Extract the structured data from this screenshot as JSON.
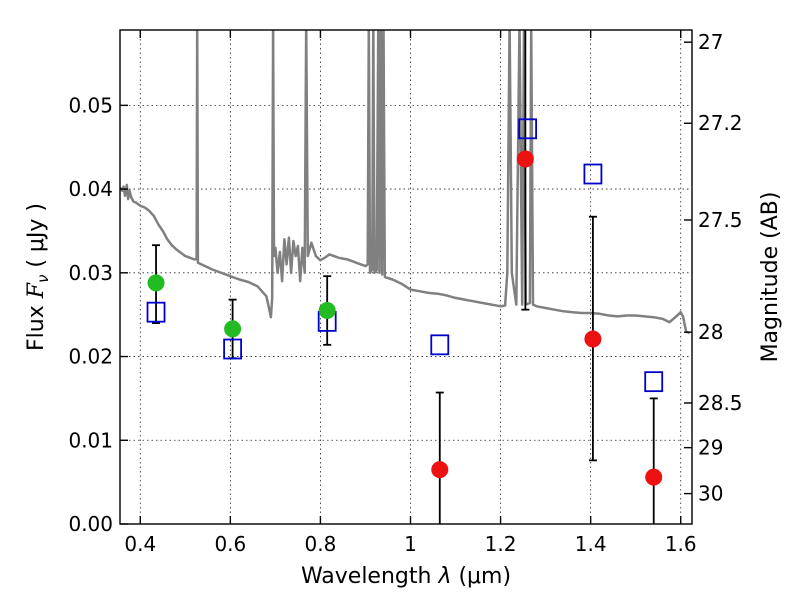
{
  "chart_data": {
    "type": "scatter",
    "title": "",
    "xlabel_pre": "Wavelength  ",
    "xlabel_lambda": "λ",
    "xlabel_units": " (μm)",
    "ylabel_pre": "Flux  ",
    "ylabel_F": "F",
    "ylabel_nu": "ν",
    "ylabel_units": "  ( μJy )",
    "y2label": "Magnitude (AB)",
    "xlim": [
      0.355,
      1.625
    ],
    "ylim": [
      0.0,
      0.059
    ],
    "grid": true,
    "x_ticks": [
      {
        "value": 0.4,
        "label": "0.4"
      },
      {
        "value": 0.6,
        "label": "0.6"
      },
      {
        "value": 0.8,
        "label": "0.8"
      },
      {
        "value": 1.0,
        "label": "1"
      },
      {
        "value": 1.2,
        "label": "1.2"
      },
      {
        "value": 1.4,
        "label": "1.4"
      },
      {
        "value": 1.6,
        "label": "1.6"
      }
    ],
    "y_ticks": [
      {
        "value": 0.0,
        "label": "0.00"
      },
      {
        "value": 0.01,
        "label": "0.01"
      },
      {
        "value": 0.02,
        "label": "0.02"
      },
      {
        "value": 0.03,
        "label": "0.03"
      },
      {
        "value": 0.04,
        "label": "0.04"
      },
      {
        "value": 0.05,
        "label": "0.05"
      }
    ],
    "mag_ticks": [
      {
        "mag": 27,
        "label": "27"
      },
      {
        "mag": 27.2,
        "label": "27.2"
      },
      {
        "mag": 27.5,
        "label": "27.5"
      },
      {
        "mag": 28,
        "label": "28"
      },
      {
        "mag": 28.5,
        "label": "28.5"
      },
      {
        "mag": 29,
        "label": "29"
      },
      {
        "mag": 30,
        "label": "30"
      }
    ],
    "template_spectrum": {
      "color": "#808080",
      "points": [
        [
          0.355,
          0.0402
        ],
        [
          0.36,
          0.0398
        ],
        [
          0.363,
          0.0403
        ],
        [
          0.366,
          0.0392
        ],
        [
          0.37,
          0.0405
        ],
        [
          0.373,
          0.0388
        ],
        [
          0.376,
          0.0398
        ],
        [
          0.38,
          0.039
        ],
        [
          0.385,
          0.0385
        ],
        [
          0.39,
          0.0384
        ],
        [
          0.4,
          0.038
        ],
        [
          0.41,
          0.0378
        ],
        [
          0.42,
          0.0374
        ],
        [
          0.43,
          0.0368
        ],
        [
          0.44,
          0.0358
        ],
        [
          0.45,
          0.035
        ],
        [
          0.46,
          0.034
        ],
        [
          0.47,
          0.0333
        ],
        [
          0.48,
          0.0328
        ],
        [
          0.49,
          0.0324
        ],
        [
          0.5,
          0.032
        ],
        [
          0.51,
          0.0318
        ],
        [
          0.52,
          0.0316
        ],
        [
          0.525,
          0.0316
        ],
        [
          0.5265,
          0.06
        ],
        [
          0.528,
          0.0312
        ],
        [
          0.54,
          0.0309
        ],
        [
          0.56,
          0.0304
        ],
        [
          0.58,
          0.03
        ],
        [
          0.6,
          0.0296
        ],
        [
          0.62,
          0.0292
        ],
        [
          0.64,
          0.0289
        ],
        [
          0.66,
          0.0284
        ],
        [
          0.68,
          0.0272
        ],
        [
          0.685,
          0.026
        ],
        [
          0.69,
          0.0247
        ],
        [
          0.693,
          0.027
        ],
        [
          0.695,
          0.06
        ],
        [
          0.697,
          0.032
        ],
        [
          0.7,
          0.033
        ],
        [
          0.705,
          0.03
        ],
        [
          0.71,
          0.0325
        ],
        [
          0.715,
          0.029
        ],
        [
          0.72,
          0.034
        ],
        [
          0.725,
          0.031
        ],
        [
          0.73,
          0.0342
        ],
        [
          0.735,
          0.03
        ],
        [
          0.74,
          0.0338
        ],
        [
          0.745,
          0.032
        ],
        [
          0.75,
          0.0332
        ],
        [
          0.755,
          0.029
        ],
        [
          0.76,
          0.033
        ],
        [
          0.765,
          0.03
        ],
        [
          0.7685,
          0.06
        ],
        [
          0.772,
          0.032
        ],
        [
          0.78,
          0.0336
        ],
        [
          0.79,
          0.032
        ],
        [
          0.8,
          0.0315
        ],
        [
          0.81,
          0.0318
        ],
        [
          0.82,
          0.0322
        ],
        [
          0.83,
          0.032
        ],
        [
          0.84,
          0.0318
        ],
        [
          0.85,
          0.0317
        ],
        [
          0.86,
          0.0316
        ],
        [
          0.87,
          0.0314
        ],
        [
          0.88,
          0.0312
        ],
        [
          0.89,
          0.031
        ],
        [
          0.9,
          0.0308
        ],
        [
          0.905,
          0.031
        ],
        [
          0.9075,
          0.06
        ],
        [
          0.91,
          0.03
        ],
        [
          0.915,
          0.0304
        ],
        [
          0.9175,
          0.06
        ],
        [
          0.92,
          0.03
        ],
        [
          0.925,
          0.0303
        ],
        [
          0.9285,
          0.06
        ],
        [
          0.931,
          0.03
        ],
        [
          0.934,
          0.06
        ],
        [
          0.937,
          0.0298
        ],
        [
          0.94,
          0.06
        ],
        [
          0.943,
          0.0295
        ],
        [
          0.96,
          0.0292
        ],
        [
          0.98,
          0.0287
        ],
        [
          1.0,
          0.028
        ],
        [
          1.02,
          0.0278
        ],
        [
          1.04,
          0.0276
        ],
        [
          1.06,
          0.0275
        ],
        [
          1.08,
          0.0273
        ],
        [
          1.1,
          0.027
        ],
        [
          1.12,
          0.0268
        ],
        [
          1.14,
          0.0266
        ],
        [
          1.16,
          0.0264
        ],
        [
          1.18,
          0.0262
        ],
        [
          1.2,
          0.026
        ],
        [
          1.21,
          0.0261
        ],
        [
          1.215,
          0.03
        ],
        [
          1.22,
          0.06
        ],
        [
          1.225,
          0.03
        ],
        [
          1.235,
          0.0262
        ],
        [
          1.242,
          0.06
        ],
        [
          1.248,
          0.0262
        ],
        [
          1.252,
          0.06
        ],
        [
          1.256,
          0.0262
        ],
        [
          1.26,
          0.0263
        ],
        [
          1.265,
          0.0264
        ],
        [
          1.268,
          0.06
        ],
        [
          1.272,
          0.0262
        ],
        [
          1.28,
          0.026
        ],
        [
          1.3,
          0.0258
        ],
        [
          1.32,
          0.0256
        ],
        [
          1.34,
          0.0254
        ],
        [
          1.36,
          0.0253
        ],
        [
          1.38,
          0.0252
        ],
        [
          1.4,
          0.0252
        ],
        [
          1.42,
          0.0251
        ],
        [
          1.44,
          0.0249
        ],
        [
          1.46,
          0.0248
        ],
        [
          1.48,
          0.0249
        ],
        [
          1.5,
          0.0249
        ],
        [
          1.52,
          0.0248
        ],
        [
          1.54,
          0.0247
        ],
        [
          1.56,
          0.0245
        ],
        [
          1.575,
          0.0241
        ],
        [
          1.59,
          0.0248
        ],
        [
          1.6,
          0.0253
        ],
        [
          1.605,
          0.0248
        ],
        [
          1.612,
          0.023
        ],
        [
          1.62,
          0.0228
        ]
      ]
    },
    "model_points": {
      "color": "#0000cc",
      "x": [
        0.435,
        0.605,
        0.815,
        1.065,
        1.26,
        1.405,
        1.54
      ],
      "y": [
        0.0253,
        0.0209,
        0.0242,
        0.0214,
        0.0472,
        0.0418,
        0.017
      ]
    },
    "observed_green": {
      "color": "#22bb22",
      "x": [
        0.435,
        0.605,
        0.815
      ],
      "y": [
        0.0288,
        0.0233,
        0.0255
      ],
      "err_low": [
        0.024,
        0.0198,
        0.0214
      ],
      "err_high": [
        0.0333,
        0.0268,
        0.0296
      ]
    },
    "observed_red": {
      "color": "#ee1111",
      "x": [
        1.065,
        1.255,
        1.405,
        1.54
      ],
      "y": [
        0.0065,
        0.0436,
        0.0221,
        0.0056
      ],
      "err_low": [
        0.0,
        0.0256,
        0.0076,
        0.0
      ],
      "err_high": [
        0.0157,
        0.059,
        0.0367,
        0.015
      ]
    }
  }
}
